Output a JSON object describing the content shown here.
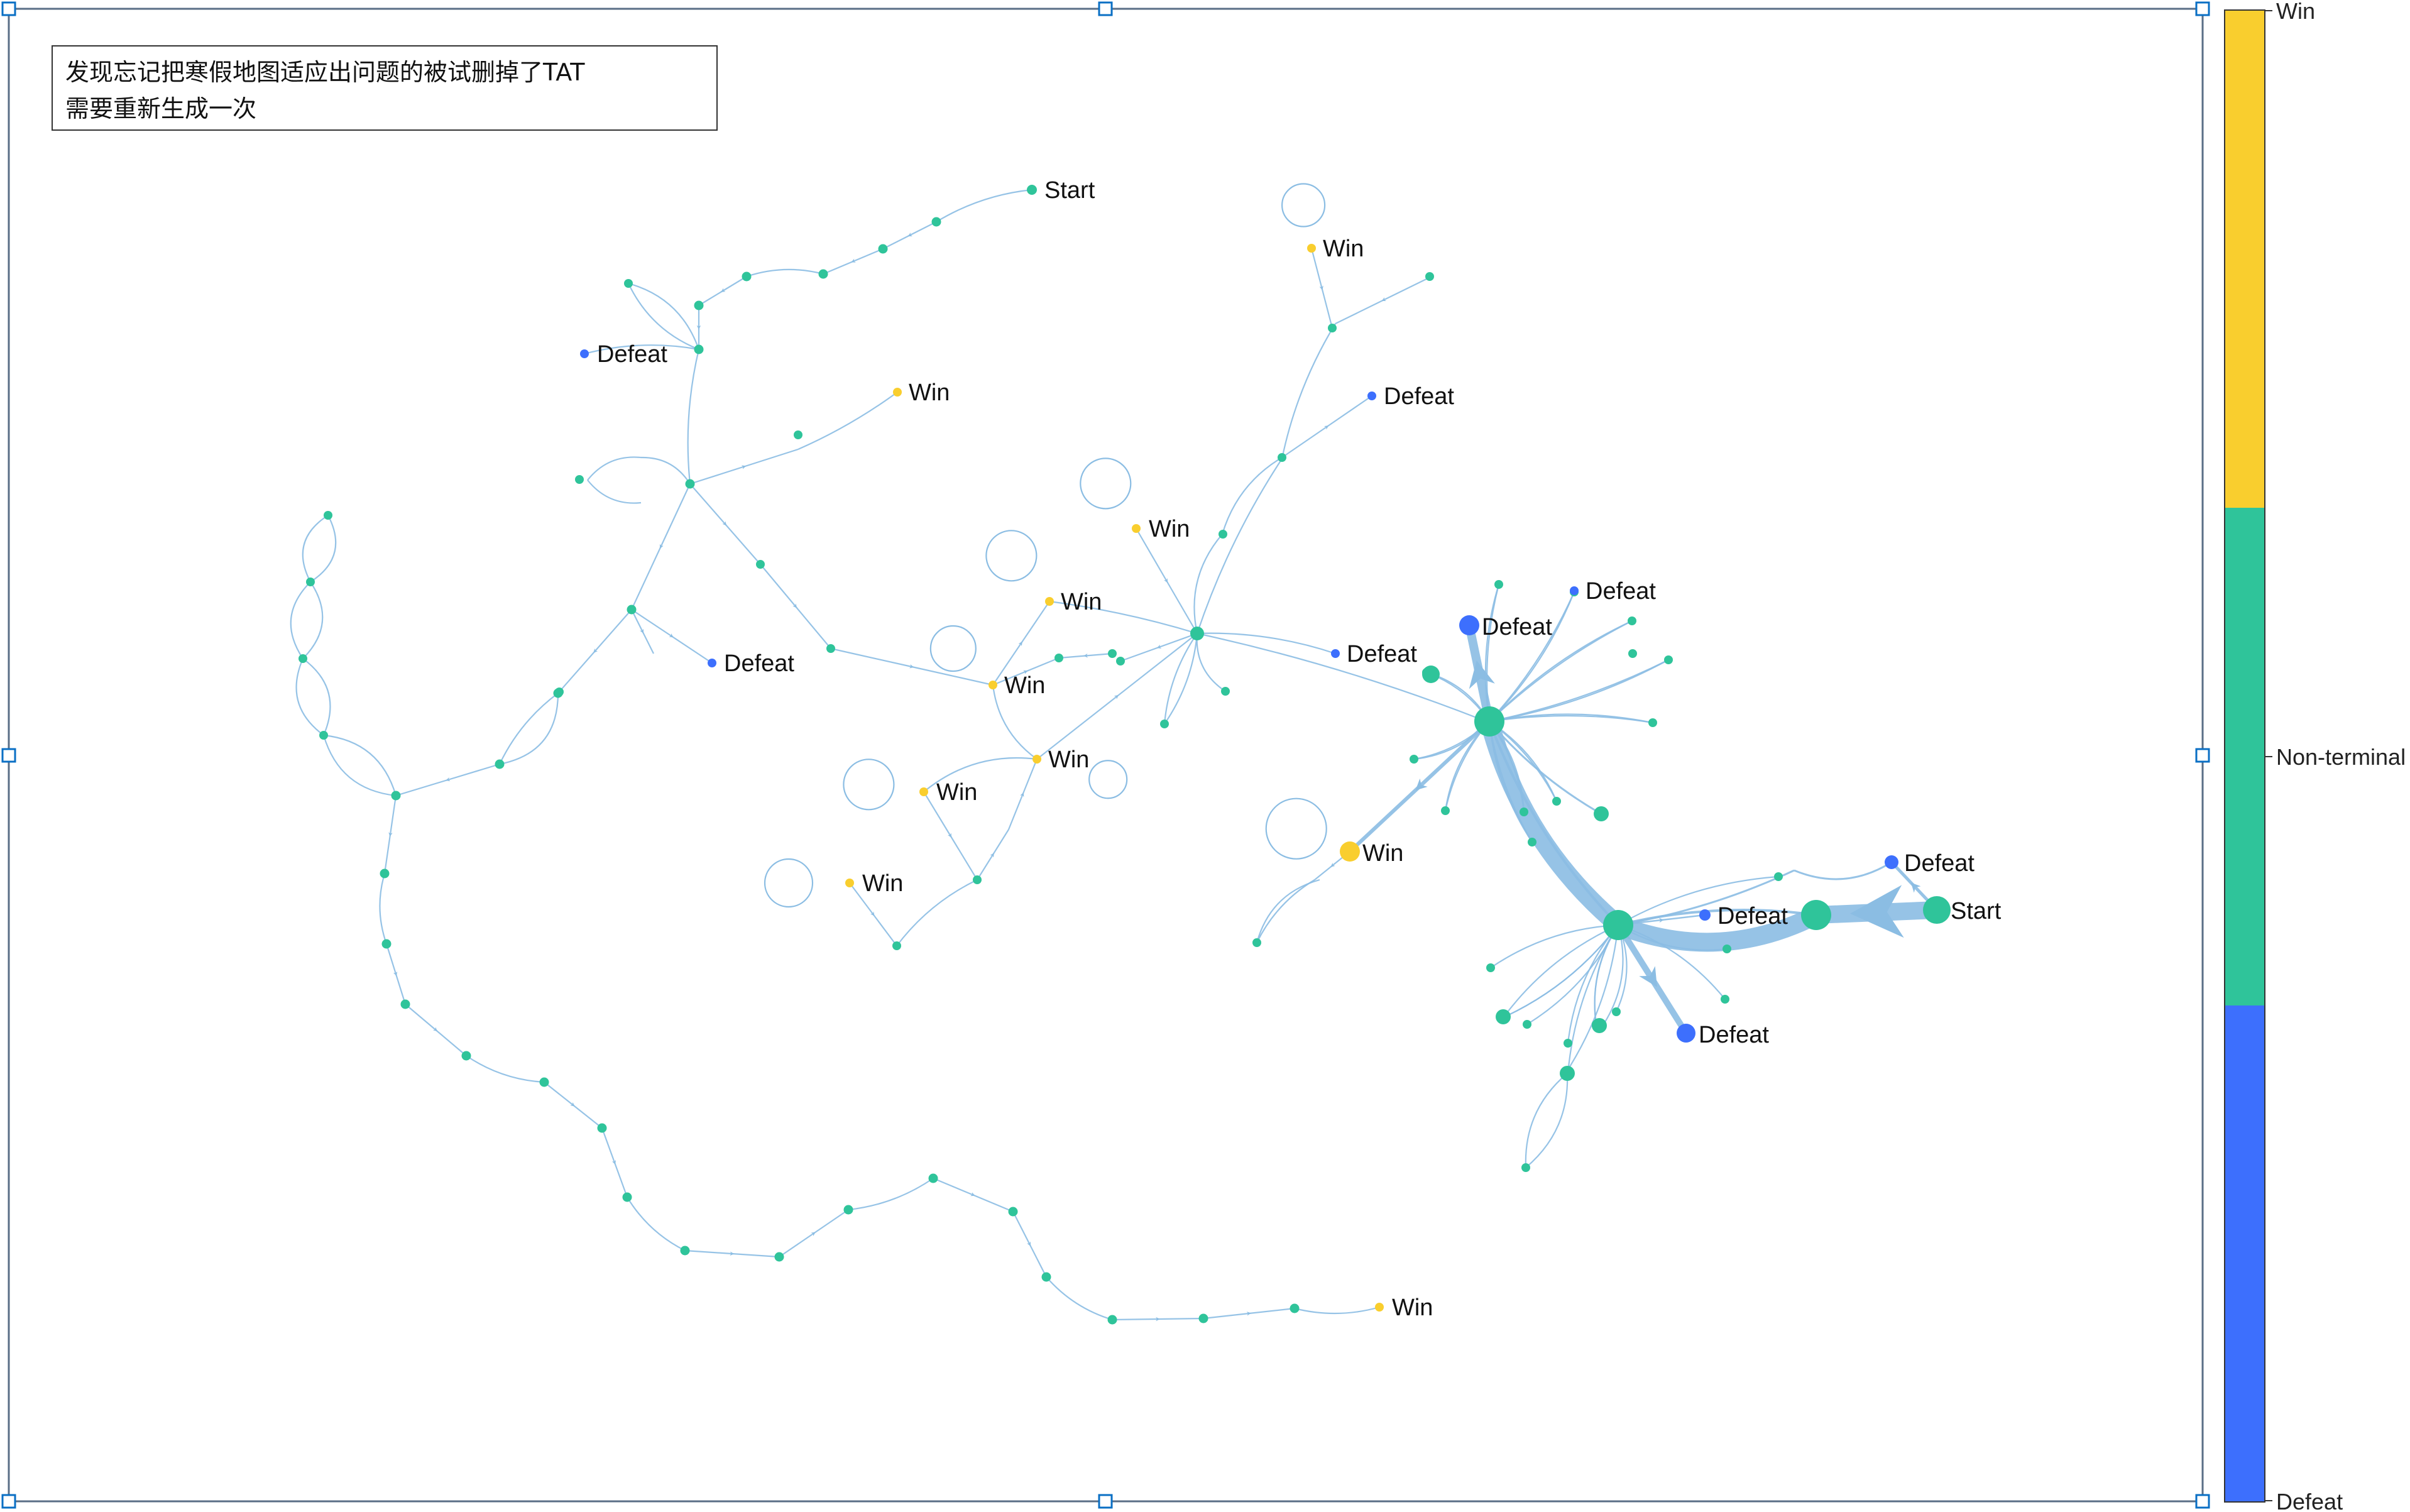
{
  "annotation": {
    "line1": "发现忘记把寒假地图适应出问题的被试删掉了TAT",
    "line2": "需要重新生成一次"
  },
  "colorbar": {
    "labels": {
      "top": "Win",
      "middle": "Non-terminal",
      "bottom": "Defeat"
    },
    "colors": {
      "win": "#f9ce2e",
      "nonterminal": "#2fc49a",
      "defeat": "#3d6ffd"
    }
  },
  "edge_color": "#8bbde3",
  "states": {
    "start": "Start",
    "win": "Win",
    "defeat": "Defeat"
  }
}
